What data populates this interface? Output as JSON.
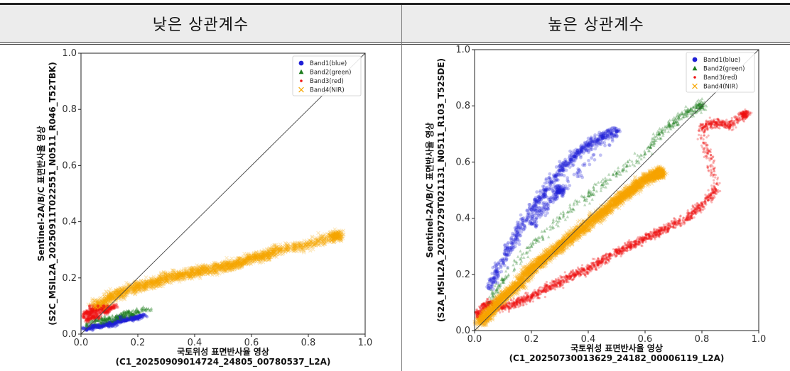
{
  "header": {
    "left_title": "낮은 상관계수",
    "right_title": "높은 상관계수"
  },
  "chart_data": [
    {
      "type": "scatter",
      "title": "낮은 상관계수",
      "xlabel": "국토위성 표면반사율 영상",
      "xlabel2": "(C1_20250909014724_24805_00780537_L2A)",
      "ylabel": "Sentinel-2A/B/C 표면반사율 영상",
      "ylabel2": "(S2C_MSIL2A_20250911T022551_N0511_R046_T52TBK)",
      "xlim": [
        0,
        1.0
      ],
      "ylim": [
        0,
        1.0
      ],
      "xticks": [
        "0.0",
        "0.2",
        "0.4",
        "0.6",
        "0.8",
        "1.0"
      ],
      "yticks": [
        "0.0",
        "0.2",
        "0.4",
        "0.6",
        "0.8",
        "1.0"
      ],
      "grid": false,
      "reference_line": "1:1",
      "legend_position": "top-right",
      "series": [
        {
          "name": "Band1(blue)",
          "marker": "circle",
          "color": "#1f1fd6",
          "points": [
            [
              0.01,
              0.02
            ],
            [
              0.03,
              0.02
            ],
            [
              0.05,
              0.03
            ],
            [
              0.08,
              0.03
            ],
            [
              0.1,
              0.04
            ],
            [
              0.12,
              0.04
            ],
            [
              0.15,
              0.05
            ],
            [
              0.18,
              0.06
            ],
            [
              0.2,
              0.06
            ],
            [
              0.22,
              0.07
            ],
            [
              0.02,
              0.015
            ],
            [
              0.06,
              0.025
            ],
            [
              0.09,
              0.035
            ],
            [
              0.13,
              0.045
            ],
            [
              0.16,
              0.05
            ],
            [
              0.19,
              0.055
            ],
            [
              0.21,
              0.065
            ],
            [
              0.04,
              0.03
            ],
            [
              0.11,
              0.03
            ],
            [
              0.14,
              0.06
            ]
          ]
        },
        {
          "name": "Band2(green)",
          "marker": "triangle",
          "color": "#1e7d1e",
          "points": [
            [
              0.02,
              0.03
            ],
            [
              0.05,
              0.05
            ],
            [
              0.08,
              0.05
            ],
            [
              0.1,
              0.06
            ],
            [
              0.13,
              0.06
            ],
            [
              0.15,
              0.07
            ],
            [
              0.17,
              0.08
            ],
            [
              0.2,
              0.08
            ],
            [
              0.23,
              0.09
            ],
            [
              0.12,
              0.05
            ],
            [
              0.07,
              0.04
            ],
            [
              0.18,
              0.07
            ]
          ]
        },
        {
          "name": "Band3(red)",
          "marker": "star",
          "color": "#ee1111",
          "points": [
            [
              0.01,
              0.06
            ],
            [
              0.02,
              0.08
            ],
            [
              0.03,
              0.07
            ],
            [
              0.04,
              0.09
            ],
            [
              0.05,
              0.08
            ],
            [
              0.06,
              0.1
            ],
            [
              0.07,
              0.09
            ],
            [
              0.08,
              0.1
            ],
            [
              0.1,
              0.09
            ],
            [
              0.12,
              0.1
            ],
            [
              0.02,
              0.05
            ],
            [
              0.04,
              0.06
            ],
            [
              0.06,
              0.06
            ],
            [
              0.03,
              0.1
            ],
            [
              0.09,
              0.08
            ]
          ]
        },
        {
          "name": "Band4(NIR)",
          "marker": "x",
          "color": "#f7a600",
          "points": [
            [
              0.05,
              0.1
            ],
            [
              0.1,
              0.13
            ],
            [
              0.15,
              0.15
            ],
            [
              0.2,
              0.17
            ],
            [
              0.25,
              0.18
            ],
            [
              0.3,
              0.2
            ],
            [
              0.35,
              0.21
            ],
            [
              0.4,
              0.22
            ],
            [
              0.45,
              0.23
            ],
            [
              0.5,
              0.24
            ],
            [
              0.55,
              0.25
            ],
            [
              0.6,
              0.27
            ],
            [
              0.65,
              0.28
            ],
            [
              0.7,
              0.3
            ],
            [
              0.8,
              0.32
            ],
            [
              0.9,
              0.35
            ]
          ]
        }
      ]
    },
    {
      "type": "scatter",
      "title": "높은 상관계수",
      "xlabel": "국토위성 표면반사율 영상",
      "xlabel2": "(C1_20250730013629_24182_00006119_L2A)",
      "ylabel": "Sentinel-2A/B/C 표면반사율 영상",
      "ylabel2": "(S2A_MSIL2A_20250729T021131_N0511_R103_T52SDE)",
      "xlim": [
        0,
        1.0
      ],
      "ylim": [
        0,
        1.0
      ],
      "xticks": [
        "0.0",
        "0.2",
        "0.4",
        "0.6",
        "0.8",
        "1.0"
      ],
      "yticks": [
        "0.0",
        "0.2",
        "0.4",
        "0.6",
        "0.8",
        "1.0"
      ],
      "grid": false,
      "reference_line": "1:1",
      "legend_position": "top-right",
      "series": [
        {
          "name": "Band1(blue)",
          "marker": "circle",
          "color": "#1f1fd6",
          "points": [
            [
              0.05,
              0.15
            ],
            [
              0.1,
              0.25
            ],
            [
              0.15,
              0.35
            ],
            [
              0.2,
              0.43
            ],
            [
              0.25,
              0.5
            ],
            [
              0.3,
              0.57
            ],
            [
              0.35,
              0.62
            ],
            [
              0.4,
              0.66
            ],
            [
              0.45,
              0.69
            ],
            [
              0.5,
              0.71
            ],
            [
              0.2,
              0.38
            ],
            [
              0.3,
              0.5
            ]
          ]
        },
        {
          "name": "Band2(green)",
          "marker": "triangle",
          "color": "#1e7d1e",
          "points": [
            [
              0.05,
              0.1
            ],
            [
              0.1,
              0.18
            ],
            [
              0.2,
              0.3
            ],
            [
              0.3,
              0.4
            ],
            [
              0.4,
              0.48
            ],
            [
              0.5,
              0.56
            ],
            [
              0.6,
              0.63
            ],
            [
              0.65,
              0.7
            ],
            [
              0.7,
              0.74
            ],
            [
              0.75,
              0.78
            ],
            [
              0.8,
              0.8
            ]
          ]
        },
        {
          "name": "Band3(red)",
          "marker": "star",
          "color": "#ee1111",
          "points": [
            [
              0.01,
              0.05
            ],
            [
              0.03,
              0.08
            ],
            [
              0.05,
              0.1
            ],
            [
              0.1,
              0.08
            ],
            [
              0.15,
              0.1
            ],
            [
              0.2,
              0.12
            ],
            [
              0.25,
              0.15
            ],
            [
              0.3,
              0.17
            ],
            [
              0.35,
              0.2
            ],
            [
              0.4,
              0.22
            ],
            [
              0.45,
              0.25
            ],
            [
              0.5,
              0.28
            ],
            [
              0.55,
              0.3
            ],
            [
              0.6,
              0.33
            ],
            [
              0.65,
              0.35
            ],
            [
              0.7,
              0.38
            ],
            [
              0.75,
              0.4
            ],
            [
              0.8,
              0.45
            ],
            [
              0.85,
              0.5
            ],
            [
              0.8,
              0.72
            ],
            [
              0.85,
              0.74
            ],
            [
              0.9,
              0.73
            ],
            [
              0.95,
              0.77
            ]
          ]
        },
        {
          "name": "Band4(NIR)",
          "marker": "x",
          "color": "#f7a600",
          "points": [
            [
              0.02,
              0.03
            ],
            [
              0.05,
              0.06
            ],
            [
              0.1,
              0.12
            ],
            [
              0.15,
              0.16
            ],
            [
              0.2,
              0.22
            ],
            [
              0.25,
              0.26
            ],
            [
              0.3,
              0.3
            ],
            [
              0.35,
              0.34
            ],
            [
              0.4,
              0.38
            ],
            [
              0.45,
              0.42
            ],
            [
              0.5,
              0.46
            ],
            [
              0.55,
              0.5
            ],
            [
              0.6,
              0.54
            ],
            [
              0.65,
              0.56
            ]
          ]
        }
      ]
    }
  ]
}
